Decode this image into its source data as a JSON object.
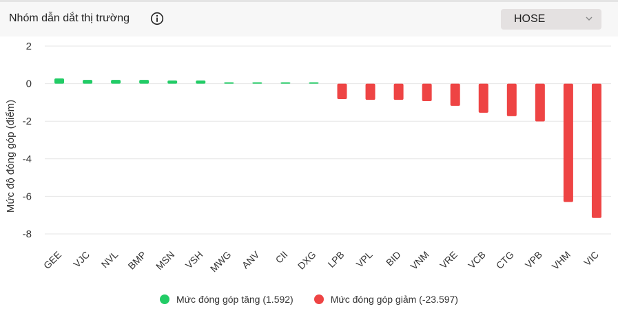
{
  "header": {
    "title": "Nhóm dẫn dắt thị trường",
    "info_icon": "info-icon",
    "dropdown_value": "HOSE",
    "dropdown_icon": "chevron-down-icon"
  },
  "colors": {
    "positive": "#22cc66",
    "negative": "#ee4444",
    "grid": "#e6e6e6"
  },
  "legend": {
    "positive_label": "Mức đóng góp tăng (1.592)",
    "negative_label": "Mức đóng góp giảm (-23.597)"
  },
  "chart_data": {
    "type": "bar",
    "ylabel": "Mức độ đóng góp (điểm)",
    "ylim": [
      -8,
      2
    ],
    "yticks": [
      2,
      0,
      -2,
      -4,
      -6,
      -8
    ],
    "grid": true,
    "legend_position": "bottom",
    "categories": [
      "GEE",
      "VJC",
      "NVL",
      "BMP",
      "MSN",
      "VSH",
      "MWG",
      "ANV",
      "CII",
      "DXG",
      "LPB",
      "VPL",
      "BID",
      "VNM",
      "VRE",
      "VCB",
      "CTG",
      "VPB",
      "VHM",
      "VIC"
    ],
    "values": [
      0.28,
      0.2,
      0.2,
      0.2,
      0.17,
      0.17,
      0.07,
      0.07,
      0.07,
      0.07,
      -0.82,
      -0.86,
      -0.86,
      -0.93,
      -1.18,
      -1.55,
      -1.73,
      -2.01,
      -6.3,
      -7.15
    ]
  }
}
